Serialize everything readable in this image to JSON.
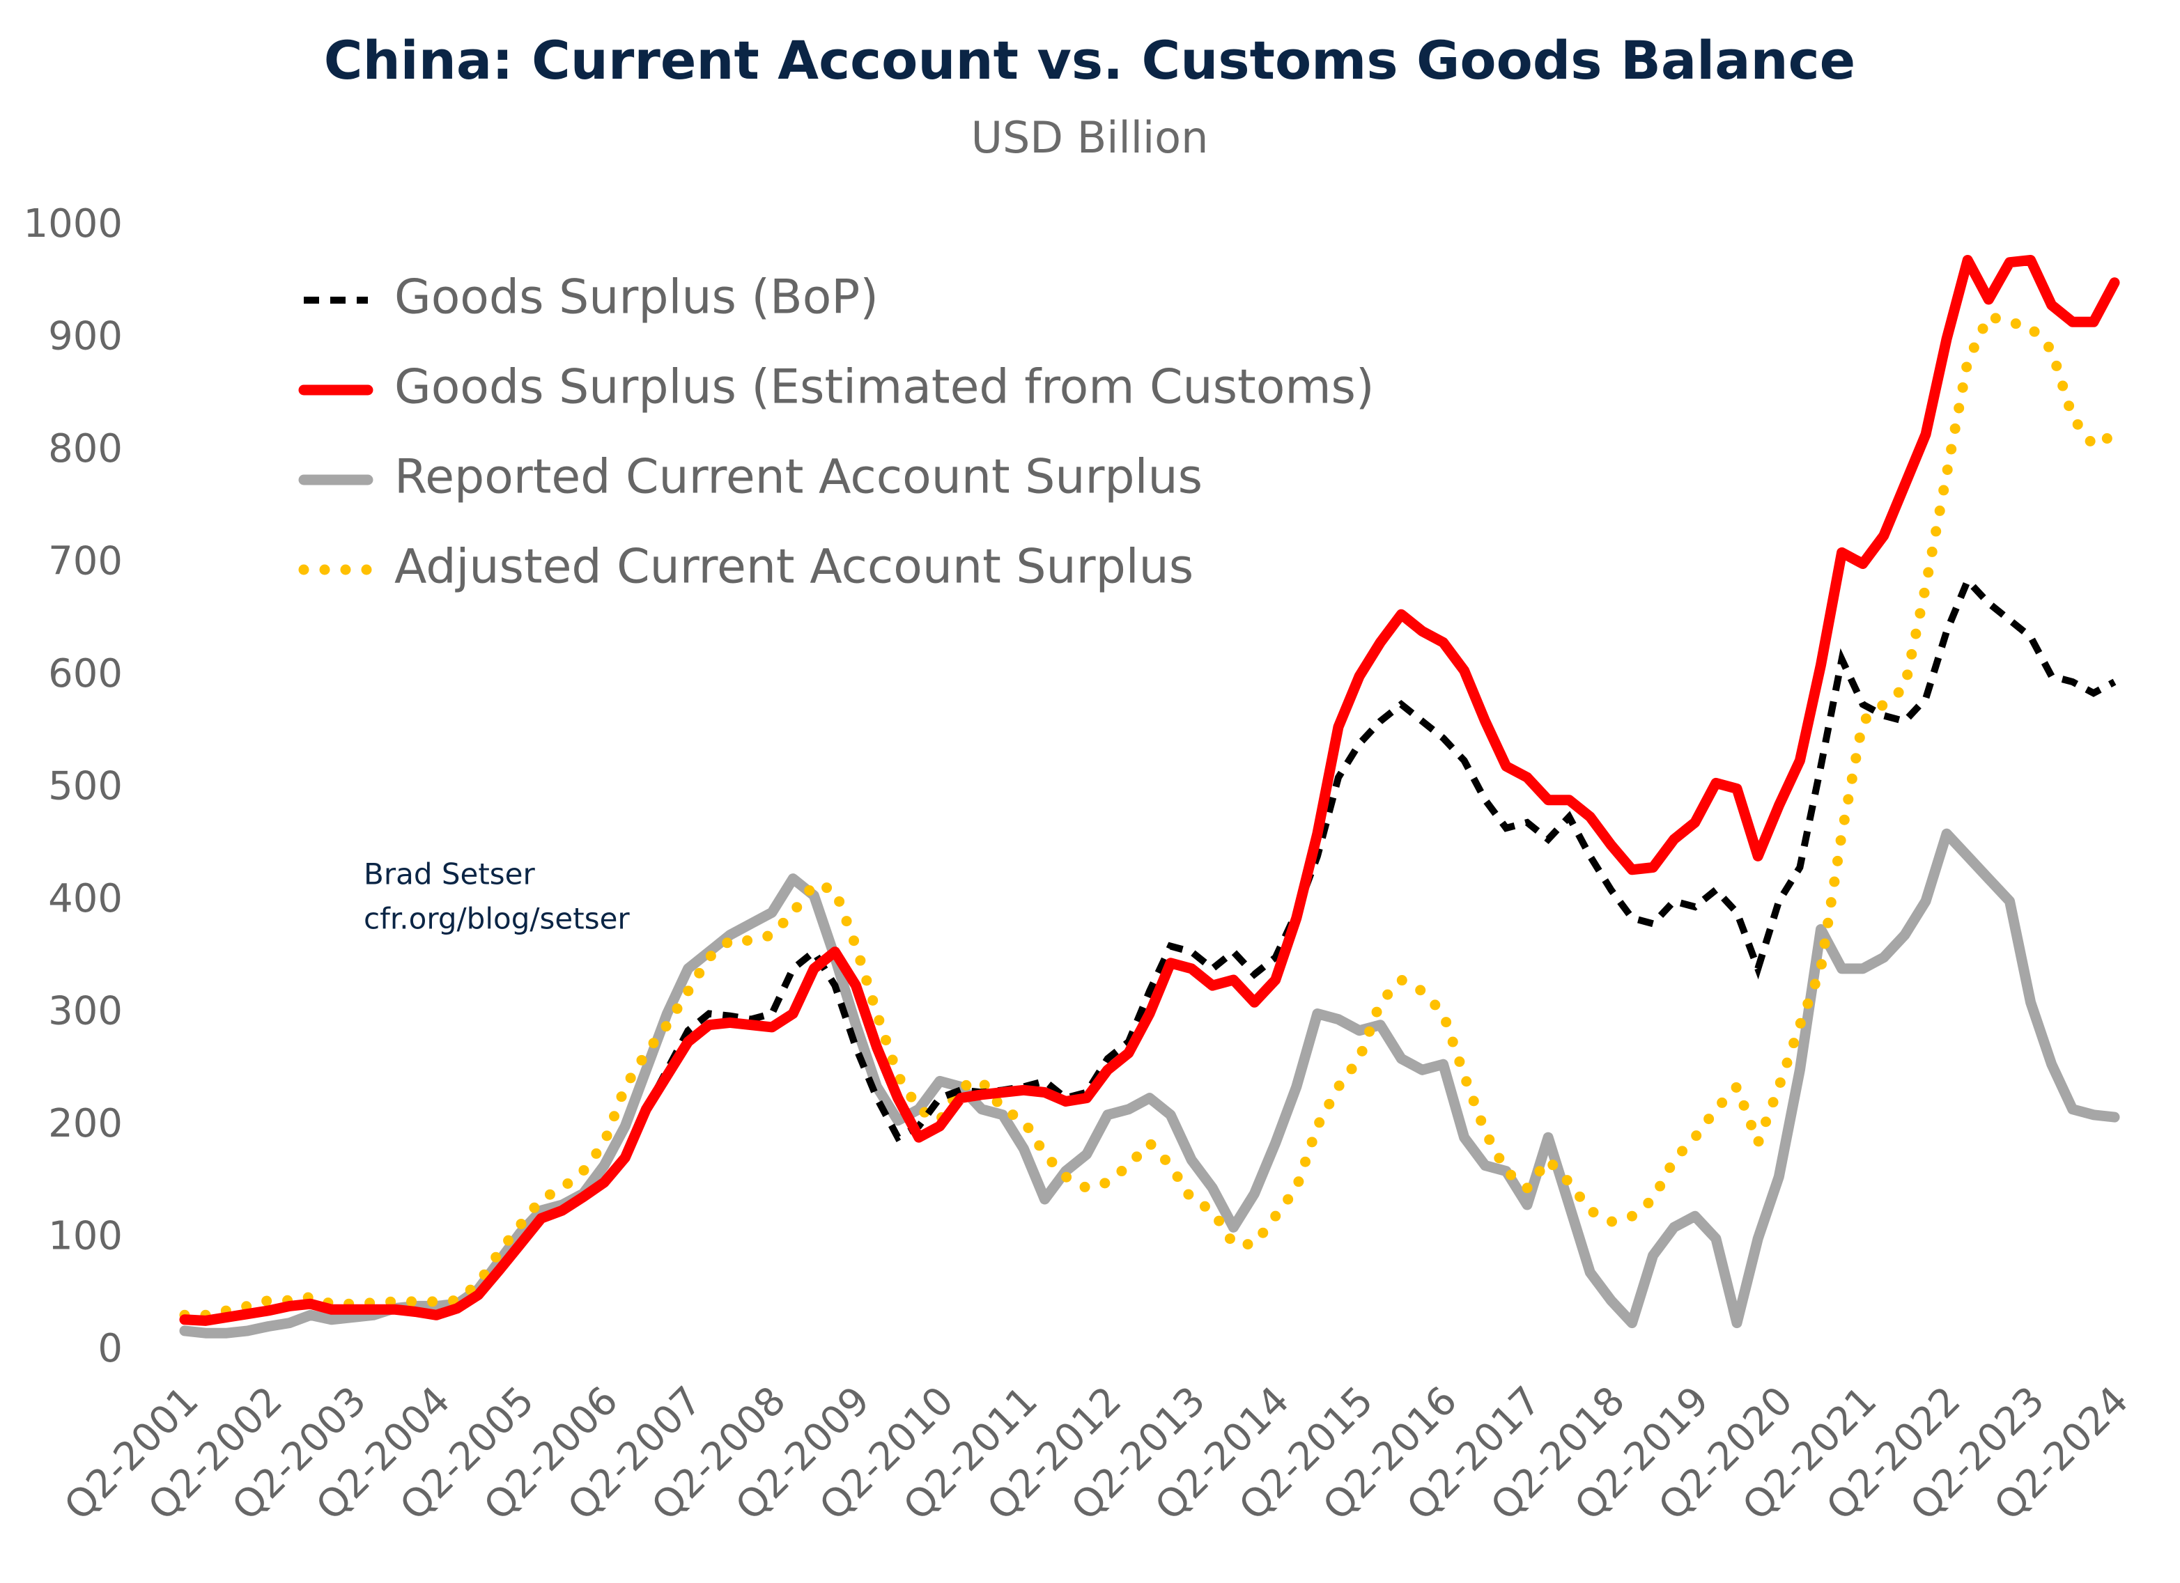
{
  "chart_data": {
    "type": "line",
    "title": "China: Current Account vs. Customs Goods Balance",
    "subtitle": "USD Billion",
    "annotations": [
      "Brad Setser",
      "cfr.org/blog/setser"
    ],
    "categories": [
      "Q2-2001",
      null,
      null,
      null,
      "Q2-2002",
      null,
      null,
      null,
      "Q2-2003",
      null,
      null,
      null,
      "Q2-2004",
      null,
      null,
      null,
      "Q2-2005",
      null,
      null,
      null,
      "Q2-2006",
      null,
      null,
      null,
      "Q2-2007",
      null,
      null,
      null,
      "Q2-2008",
      null,
      null,
      null,
      "Q2-2009",
      null,
      null,
      null,
      "Q2-2010",
      null,
      null,
      null,
      "Q2-2011",
      null,
      null,
      null,
      "Q2-2012",
      null,
      null,
      null,
      "Q2-2013",
      null,
      null,
      null,
      "Q2-2014",
      null,
      null,
      null,
      "Q2-2015",
      null,
      null,
      null,
      "Q2-2016",
      null,
      null,
      null,
      "Q2-2017",
      null,
      null,
      null,
      "Q2-2018",
      null,
      null,
      null,
      "Q2-2019",
      null,
      null,
      null,
      "Q2-2020",
      null,
      null,
      null,
      "Q2-2021",
      null,
      null,
      null,
      "Q2-2022",
      null,
      null,
      null,
      "Q2-2023",
      null,
      null,
      null,
      "Q2-2024"
    ],
    "series": [
      {
        "name": "Goods Surplus (BoP)",
        "color": "#000000",
        "style": "dashed",
        "values": [
          28,
          27,
          30,
          33,
          36,
          40,
          42,
          37,
          37,
          37,
          37,
          35,
          32,
          38,
          50,
          72,
          95,
          118,
          125,
          137,
          150,
          172,
          215,
          250,
          285,
          300,
          298,
          295,
          300,
          340,
          355,
          325,
          270,
          225,
          190,
          200,
          225,
          232,
          230,
          232,
          235,
          240,
          225,
          230,
          260,
          275,
          320,
          360,
          355,
          340,
          355,
          335,
          350,
          390,
          440,
          510,
          540,
          560,
          575,
          560,
          545,
          525,
          490,
          465,
          470,
          455,
          475,
          440,
          410,
          385,
          380,
          400,
          395,
          410,
          390,
          340,
          400,
          430,
          520,
          615,
          575,
          565,
          560,
          580,
          640,
          685,
          665,
          650,
          635,
          600,
          595,
          585,
          595
        ]
      },
      {
        "name": "Goods Surplus (Estimated from Customs)",
        "color": "#ff0000",
        "style": "solid",
        "values": [
          28,
          27,
          30,
          33,
          36,
          40,
          42,
          37,
          37,
          37,
          37,
          35,
          32,
          38,
          50,
          72,
          95,
          118,
          125,
          137,
          150,
          172,
          215,
          245,
          275,
          290,
          292,
          290,
          288,
          300,
          340,
          355,
          325,
          270,
          225,
          190,
          200,
          225,
          228,
          230,
          232,
          230,
          222,
          225,
          250,
          265,
          300,
          345,
          340,
          325,
          330,
          310,
          330,
          385,
          460,
          555,
          600,
          630,
          655,
          640,
          630,
          605,
          560,
          520,
          510,
          490,
          490,
          475,
          450,
          428,
          430,
          455,
          470,
          505,
          500,
          440,
          485,
          525,
          610,
          710,
          700,
          725,
          770,
          815,
          900,
          970,
          935,
          968,
          970,
          930,
          915,
          915,
          950
        ]
      },
      {
        "name": "Reported Current Account Surplus",
        "color": "#a6a6a6",
        "style": "solid",
        "values": [
          18,
          16,
          16,
          18,
          22,
          25,
          32,
          28,
          30,
          32,
          38,
          40,
          40,
          42,
          55,
          80,
          105,
          125,
          130,
          140,
          165,
          200,
          250,
          300,
          340,
          355,
          370,
          380,
          390,
          420,
          405,
          350,
          290,
          235,
          205,
          215,
          240,
          235,
          215,
          210,
          180,
          135,
          160,
          175,
          210,
          215,
          225,
          210,
          170,
          145,
          110,
          140,
          185,
          235,
          300,
          295,
          285,
          290,
          260,
          250,
          255,
          190,
          165,
          160,
          130,
          190,
          130,
          70,
          45,
          25,
          85,
          110,
          120,
          100,
          25,
          100,
          155,
          250,
          375,
          340,
          340,
          350,
          370,
          400,
          460,
          440,
          420,
          400,
          310,
          255,
          215,
          210,
          208
        ]
      },
      {
        "name": "Adjusted Current Account Surplus",
        "color": "#ffc000",
        "style": "dotted",
        "values": [
          32,
          32,
          36,
          40,
          45,
          45,
          48,
          42,
          42,
          43,
          44,
          44,
          44,
          45,
          60,
          88,
          112,
          135,
          145,
          160,
          185,
          235,
          265,
          290,
          320,
          350,
          365,
          365,
          370,
          390,
          415,
          410,
          360,
          300,
          245,
          215,
          205,
          235,
          240,
          215,
          205,
          175,
          155,
          145,
          150,
          165,
          185,
          165,
          135,
          125,
          95,
          95,
          120,
          145,
          200,
          235,
          260,
          310,
          330,
          320,
          300,
          245,
          195,
          160,
          145,
          170,
          150,
          125,
          115,
          120,
          135,
          170,
          190,
          215,
          235,
          185,
          235,
          290,
          340,
          460,
          560,
          575,
          590,
          680,
          780,
          880,
          920,
          915,
          910,
          890,
          830,
          805,
          815
        ]
      }
    ],
    "ylim": [
      0,
      1000
    ],
    "yticks": [
      0,
      100,
      200,
      300,
      400,
      500,
      600,
      700,
      800,
      900,
      1000
    ],
    "grid": false,
    "legend": "top-left"
  }
}
